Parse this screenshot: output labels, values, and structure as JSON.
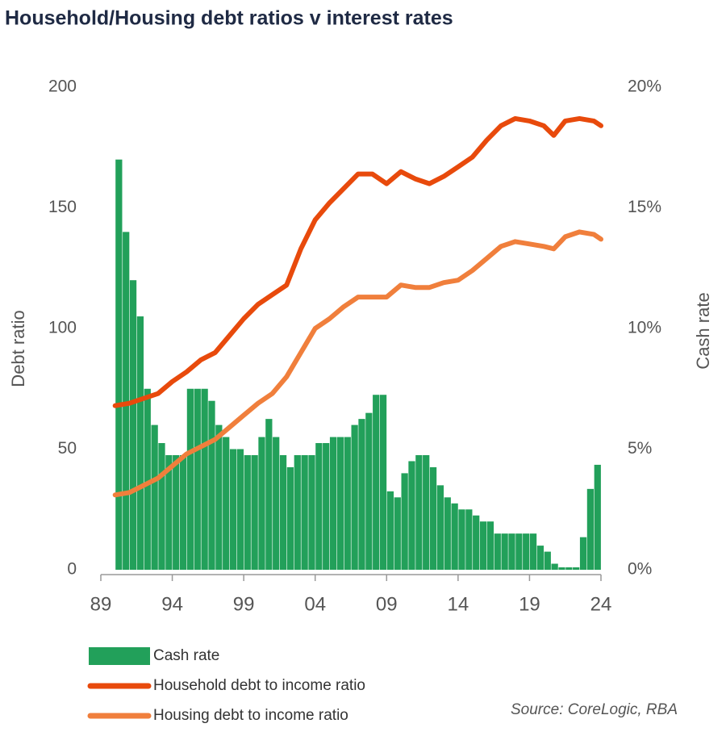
{
  "chart_data": {
    "type": "combo",
    "title": "Household/Housing debt ratios v interest rates",
    "y_label": "Debt ratio",
    "y2_label": "Cash rate",
    "source": "Source:  CoreLogic, RBA",
    "xlim": [
      1989,
      2024
    ],
    "xticks": [
      {
        "value": 1989,
        "label": "89"
      },
      {
        "value": 1994,
        "label": "94"
      },
      {
        "value": 1999,
        "label": "99"
      },
      {
        "value": 2004,
        "label": "04"
      },
      {
        "value": 2009,
        "label": "09"
      },
      {
        "value": 2014,
        "label": "14"
      },
      {
        "value": 2019,
        "label": "19"
      },
      {
        "value": 2024,
        "label": "24"
      }
    ],
    "ylim": [
      0,
      200
    ],
    "yticks": [
      0,
      50,
      100,
      150,
      200
    ],
    "y2lim": [
      0,
      20
    ],
    "y2ticks": [
      {
        "value": 0,
        "label": "0%"
      },
      {
        "value": 5,
        "label": "5%"
      },
      {
        "value": 10,
        "label": "10%"
      },
      {
        "value": 15,
        "label": "15%"
      },
      {
        "value": 20,
        "label": "20%"
      }
    ],
    "series": [
      {
        "name": "Cash rate",
        "type": "bar",
        "axis": "y2",
        "color": "#22a05a",
        "x": [
          1990,
          1990.5,
          1991,
          1991.5,
          1992,
          1992.5,
          1993,
          1993.5,
          1994,
          1994.5,
          1995,
          1995.5,
          1996,
          1996.5,
          1997,
          1997.5,
          1998,
          1998.5,
          1999,
          1999.5,
          2000,
          2000.5,
          2001,
          2001.5,
          2002,
          2002.5,
          2003,
          2003.5,
          2004,
          2004.5,
          2005,
          2005.5,
          2006,
          2006.5,
          2007,
          2007.5,
          2008,
          2008.5,
          2009,
          2009.5,
          2010,
          2010.5,
          2011,
          2011.5,
          2012,
          2012.5,
          2013,
          2013.5,
          2014,
          2014.5,
          2015,
          2015.5,
          2016,
          2016.5,
          2017,
          2017.5,
          2018,
          2018.5,
          2019,
          2019.5,
          2020,
          2020.5,
          2021,
          2021.5,
          2022,
          2022.5,
          2023,
          2023.5
        ],
        "values": [
          17,
          14,
          12,
          10.5,
          7.5,
          6,
          5.25,
          4.75,
          4.75,
          4.75,
          7.5,
          7.5,
          7.5,
          7,
          6,
          5.5,
          5,
          5,
          4.75,
          4.75,
          5.5,
          6.25,
          5.5,
          4.75,
          4.25,
          4.75,
          4.75,
          4.75,
          5.25,
          5.25,
          5.5,
          5.5,
          5.5,
          6,
          6.25,
          6.5,
          7.25,
          7.25,
          3.25,
          3,
          4,
          4.5,
          4.75,
          4.75,
          4.25,
          3.5,
          3,
          2.75,
          2.5,
          2.5,
          2.25,
          2,
          2,
          1.5,
          1.5,
          1.5,
          1.5,
          1.5,
          1.5,
          1,
          0.75,
          0.25,
          0.1,
          0.1,
          0.1,
          1.35,
          3.35,
          4.35
        ]
      },
      {
        "name": "Household debt to income ratio",
        "type": "line",
        "axis": "y",
        "color": "#e84a0c",
        "x": [
          1990,
          1991,
          1992,
          1993,
          1994,
          1995,
          1996,
          1997,
          1998,
          1999,
          2000,
          2001,
          2002,
          2003,
          2004,
          2005,
          2006,
          2007,
          2008,
          2009,
          2010,
          2011,
          2012,
          2013,
          2014,
          2015,
          2016,
          2017,
          2018,
          2019,
          2020,
          2020.7,
          2021.5,
          2022.5,
          2023.5,
          2024
        ],
        "values": [
          68,
          69,
          71,
          73,
          78,
          82,
          87,
          90,
          97,
          104,
          110,
          114,
          118,
          133,
          145,
          152,
          158,
          164,
          164,
          160,
          165,
          162,
          160,
          163,
          167,
          171,
          178,
          184,
          187,
          186,
          184,
          180,
          186,
          187,
          186,
          184
        ]
      },
      {
        "name": "Housing debt to income ratio",
        "type": "line",
        "axis": "y",
        "color": "#f07f3c",
        "x": [
          1990,
          1991,
          1992,
          1993,
          1994,
          1995,
          1996,
          1997,
          1998,
          1999,
          2000,
          2001,
          2002,
          2003,
          2004,
          2005,
          2006,
          2007,
          2008,
          2009,
          2010,
          2011,
          2012,
          2013,
          2014,
          2015,
          2016,
          2017,
          2018,
          2019,
          2020,
          2020.7,
          2021.5,
          2022.5,
          2023.5,
          2024
        ],
        "values": [
          31,
          32,
          35,
          38,
          43,
          48,
          51,
          54,
          59,
          64,
          69,
          73,
          80,
          90,
          100,
          104,
          109,
          113,
          113,
          113,
          118,
          117,
          117,
          119,
          120,
          124,
          129,
          134,
          136,
          135,
          134,
          133,
          138,
          140,
          139,
          137
        ]
      }
    ]
  }
}
